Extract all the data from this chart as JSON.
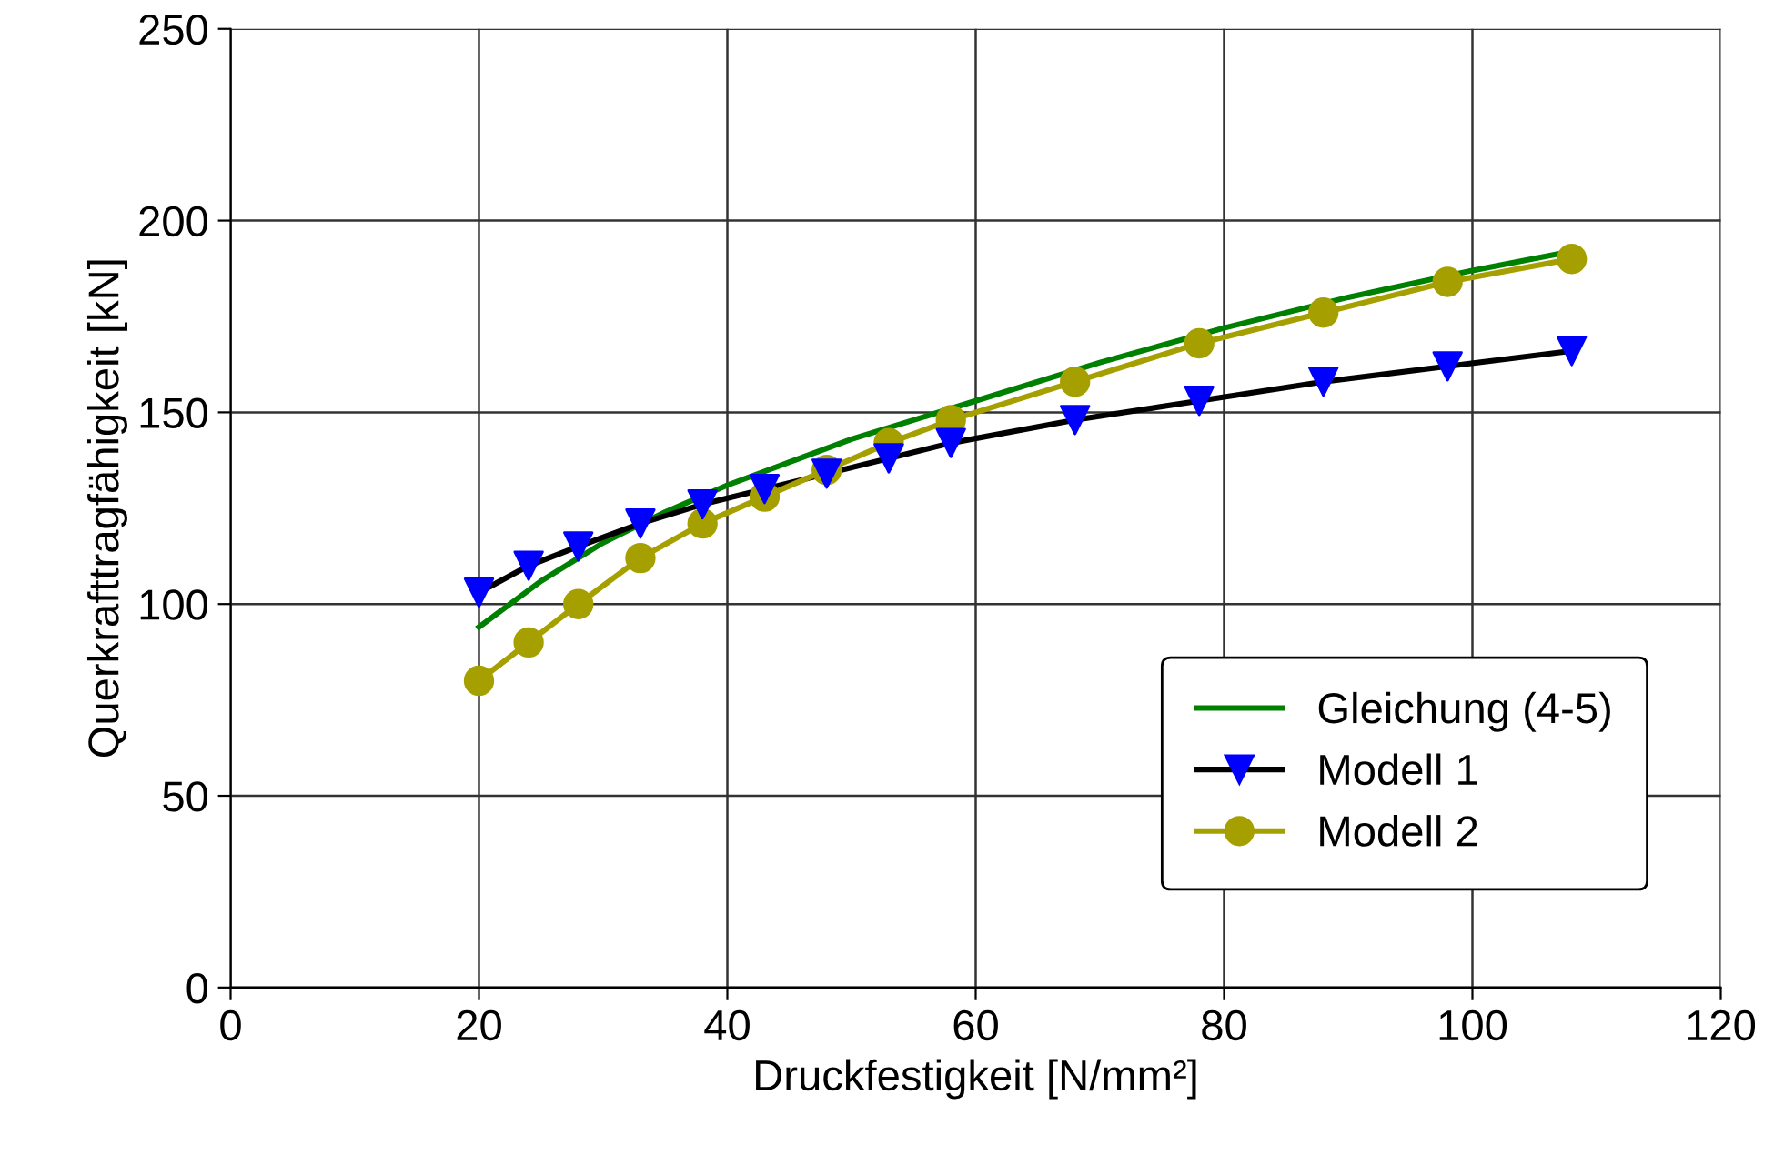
{
  "chart_data": {
    "type": "line",
    "xlabel": "Druckfestigkeit [N/mm²]",
    "ylabel": "Querkrafttragfähigkeit [kN]",
    "xlim": [
      0,
      120
    ],
    "xticks": [
      0,
      20,
      40,
      60,
      80,
      100,
      120
    ],
    "ylim": [
      0,
      250
    ],
    "yticks": [
      0,
      50,
      100,
      150,
      200,
      250
    ],
    "grid": true,
    "legend": "bottom right",
    "series": [
      {
        "name": "Gleichung (4-5)",
        "color": "#008000",
        "marker": "none",
        "x": [
          20,
          25,
          30,
          35,
          40,
          45,
          50,
          60,
          70,
          80,
          90,
          100,
          108
        ],
        "values": [
          94,
          106,
          116,
          124,
          131,
          137,
          143,
          153,
          163,
          172,
          180,
          187,
          192
        ]
      },
      {
        "name": "Modell 1",
        "color": "#000000",
        "marker": "triangle",
        "colors": [
          "#0000ff",
          "#0000ff",
          "#0000ff",
          "#0000ff",
          "#0000ff",
          "#0000ff",
          "#0000ff",
          "#0000ff",
          "#0000ff",
          "#0000ff",
          "#0000ff",
          "#0000ff",
          "#0000ff",
          "#0000ff"
        ],
        "x": [
          20,
          24,
          28,
          33,
          38,
          43,
          48,
          53,
          58,
          68,
          78,
          88,
          98,
          108
        ],
        "values": [
          103,
          110,
          115,
          121,
          126,
          130,
          134,
          138,
          142,
          148,
          153,
          158,
          162,
          166
        ]
      },
      {
        "name": "Modell 2",
        "color": "#a5a000",
        "marker": "circle",
        "x": [
          20,
          24,
          28,
          33,
          38,
          43,
          48,
          53,
          58,
          68,
          78,
          88,
          98,
          108
        ],
        "values": [
          80,
          90,
          100,
          112,
          121,
          128,
          135,
          142,
          148,
          158,
          168,
          176,
          184,
          190
        ]
      }
    ]
  }
}
